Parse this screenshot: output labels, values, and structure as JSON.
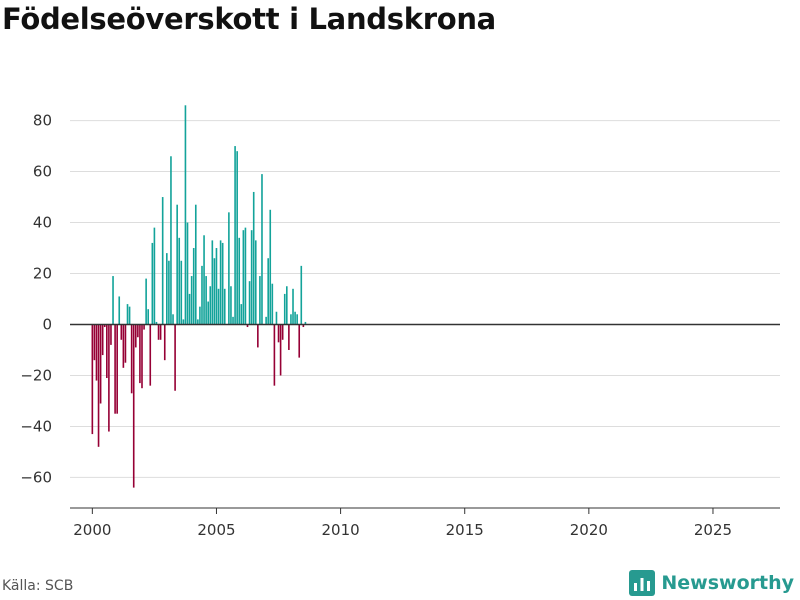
{
  "chart_data": {
    "type": "bar",
    "title": "Födelseöverskott i Landskrona",
    "xlabel": "",
    "ylabel": "",
    "x_ticks": [
      2000,
      2005,
      2010,
      2015,
      2020,
      2025
    ],
    "y_ticks": [
      80,
      60,
      40,
      20,
      0,
      -20,
      -40,
      -60
    ],
    "y_tick_labels": [
      "80",
      "60",
      "40",
      "20",
      "0",
      "−20",
      "−40",
      "−60"
    ],
    "xlim": [
      1999.1,
      2027.7
    ],
    "ylim": [
      -72,
      92
    ],
    "start_year": 2000,
    "period": "month",
    "series": [
      {
        "name": "Födelseöverskott",
        "values": [
          -43,
          -14,
          -22,
          -48,
          -31,
          -12,
          -1,
          -21,
          -42,
          -8,
          19,
          -35,
          -35,
          11,
          -6,
          -17,
          -15,
          8,
          7,
          -27,
          -64,
          -9,
          -5,
          -23,
          -25,
          -2,
          18,
          6,
          -24,
          32,
          38,
          1,
          -6,
          -6,
          50,
          -14,
          28,
          25,
          66,
          4,
          -26,
          47,
          34,
          25,
          2,
          86,
          40,
          12,
          19,
          30,
          47,
          2,
          7,
          23,
          35,
          19,
          9,
          15,
          33,
          26,
          30,
          14,
          33,
          32,
          14,
          0,
          44,
          15,
          3,
          70,
          68,
          34,
          8,
          37,
          38,
          -1,
          17,
          37,
          52,
          33,
          -9,
          19,
          59,
          0,
          3,
          26,
          45,
          16,
          -24,
          5,
          -7,
          -20,
          -6,
          12,
          15,
          -10,
          4,
          14,
          5,
          4,
          -13,
          23,
          -1,
          1
        ]
      }
    ],
    "colors": {
      "positive": "#13a39a",
      "negative": "#960035",
      "grid": "#dddddd",
      "zero_line": "#333333"
    }
  },
  "footer": {
    "source": "Källa: SCB",
    "brand": "Newsworthy"
  }
}
